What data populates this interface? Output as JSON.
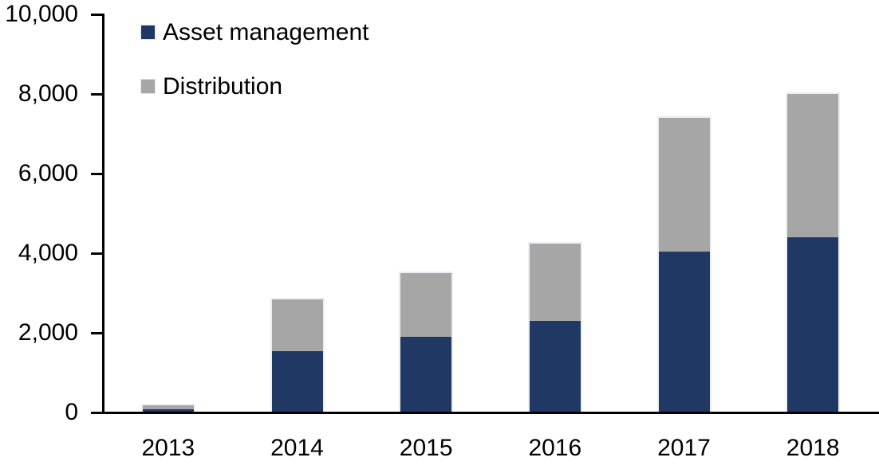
{
  "chart_data": {
    "type": "bar",
    "stacked": true,
    "title": "",
    "xlabel": "",
    "ylabel": "",
    "categories": [
      "2013",
      "2014",
      "2015",
      "2016",
      "2017",
      "2018"
    ],
    "series": [
      {
        "name": "Asset management",
        "color": "#1f3864",
        "values": [
          75,
          1550,
          1900,
          2300,
          4050,
          4400
        ]
      },
      {
        "name": "Distribution",
        "color": "#a6a6a6",
        "values": [
          100,
          1300,
          1600,
          1950,
          3350,
          3600
        ]
      }
    ],
    "ylim": [
      0,
      10000
    ],
    "yticks": [
      0,
      2000,
      4000,
      6000,
      8000,
      10000
    ],
    "ytick_labels": [
      "0",
      "2,000",
      "4,000",
      "6,000",
      "8,000",
      "10,000"
    ],
    "grid": false,
    "legend_position": "top-left"
  },
  "colors": {
    "asset_management": "#1f3864",
    "distribution": "#a6a6a6",
    "axis": "#000000",
    "background": "#ffffff",
    "text": "#000000"
  }
}
